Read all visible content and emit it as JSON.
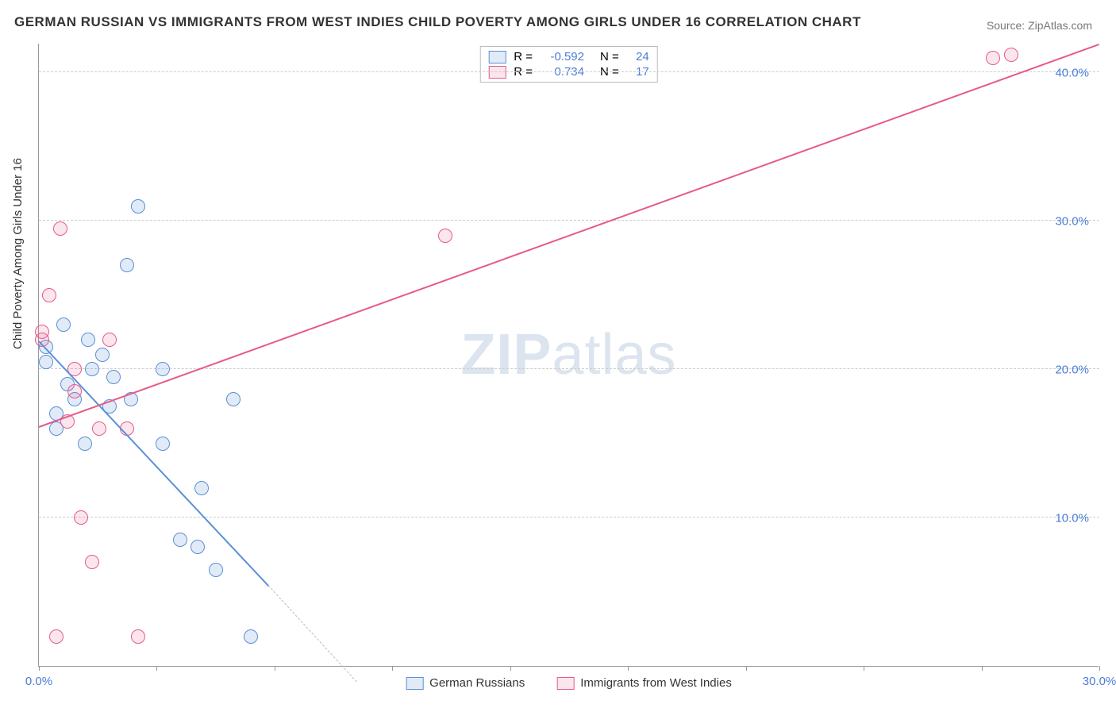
{
  "title": "GERMAN RUSSIAN VS IMMIGRANTS FROM WEST INDIES CHILD POVERTY AMONG GIRLS UNDER 16 CORRELATION CHART",
  "source": "Source: ZipAtlas.com",
  "ylabel": "Child Poverty Among Girls Under 16",
  "watermark_a": "ZIP",
  "watermark_b": "atlas",
  "chart": {
    "type": "scatter",
    "background_color": "#ffffff",
    "grid_color": "#cccccc",
    "axis_color": "#999999",
    "text_color": "#333333",
    "tick_color": "#4a7dd8",
    "xlim": [
      0,
      30
    ],
    "ylim": [
      0,
      42
    ],
    "x_ticks": [
      0,
      3.33,
      6.67,
      10,
      13.33,
      16.67,
      20,
      23.33,
      26.67,
      30
    ],
    "x_tick_labels": {
      "0": "0.0%",
      "30": "30.0%"
    },
    "y_gridlines": [
      10,
      20,
      30,
      40
    ],
    "y_tick_labels": {
      "10": "10.0%",
      "20": "20.0%",
      "30": "30.0%",
      "40": "40.0%"
    },
    "marker_radius": 9,
    "marker_fill_opacity": 0.15,
    "series": [
      {
        "key": "german_russians",
        "label": "German Russians",
        "color": "#5b8fd6",
        "fill": "rgba(91,143,214,0.18)",
        "r_label": "R =",
        "r_value": "-0.592",
        "n_label": "N =",
        "n_value": "24",
        "trend": {
          "x1": 0,
          "y1": 22,
          "x2": 6.5,
          "y2": 5.5,
          "dash_extend_x": 9,
          "dash_extend_y": -1
        },
        "points": [
          [
            0.2,
            21.5
          ],
          [
            0.2,
            20.5
          ],
          [
            0.5,
            17
          ],
          [
            0.5,
            16
          ],
          [
            0.7,
            23
          ],
          [
            0.8,
            19
          ],
          [
            1.0,
            18
          ],
          [
            1.3,
            15
          ],
          [
            1.4,
            22
          ],
          [
            1.5,
            20
          ],
          [
            1.8,
            21
          ],
          [
            2.0,
            17.5
          ],
          [
            2.1,
            19.5
          ],
          [
            2.5,
            27
          ],
          [
            2.6,
            18
          ],
          [
            2.8,
            31
          ],
          [
            3.5,
            20
          ],
          [
            4.0,
            8.5
          ],
          [
            4.5,
            8
          ],
          [
            4.6,
            12
          ],
          [
            5.0,
            6.5
          ],
          [
            5.5,
            18
          ],
          [
            6.0,
            2
          ],
          [
            3.5,
            15
          ]
        ]
      },
      {
        "key": "west_indies",
        "label": "Immigrants from West Indies",
        "color": "#e65a8a",
        "fill": "rgba(230,90,138,0.15)",
        "r_label": "R =",
        "r_value": "0.734",
        "n_label": "N =",
        "n_value": "17",
        "trend": {
          "x1": 0,
          "y1": 16.2,
          "x2": 30,
          "y2": 42
        },
        "points": [
          [
            0.1,
            22.5
          ],
          [
            0.1,
            22
          ],
          [
            0.3,
            25
          ],
          [
            0.6,
            29.5
          ],
          [
            0.8,
            16.5
          ],
          [
            1.0,
            18.5
          ],
          [
            1.2,
            10
          ],
          [
            1.5,
            7
          ],
          [
            1.7,
            16
          ],
          [
            2.0,
            22
          ],
          [
            2.5,
            16
          ],
          [
            2.8,
            2
          ],
          [
            0.5,
            2
          ],
          [
            11.5,
            29
          ],
          [
            27,
            41
          ],
          [
            27.5,
            41.2
          ],
          [
            1.0,
            20
          ]
        ]
      }
    ]
  }
}
